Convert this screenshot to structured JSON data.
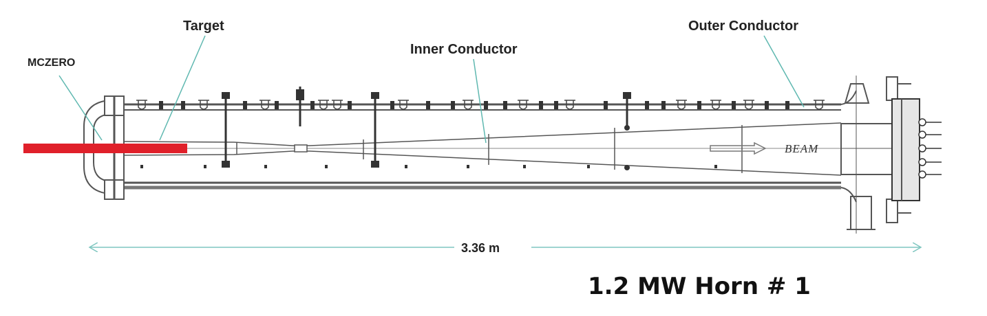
{
  "labels": {
    "mczero": "MCZERO",
    "target": "Target",
    "inner_conductor": "Inner Conductor",
    "outer_conductor": "Outer Conductor",
    "beam": "BEAM",
    "dimension": "3.36 m",
    "title": "1.2 MW Horn # 1"
  },
  "colors": {
    "target": "#e0202a",
    "leader": "#5fb8b0",
    "dimension": "#7fc6c0",
    "drawing": "#555555"
  }
}
